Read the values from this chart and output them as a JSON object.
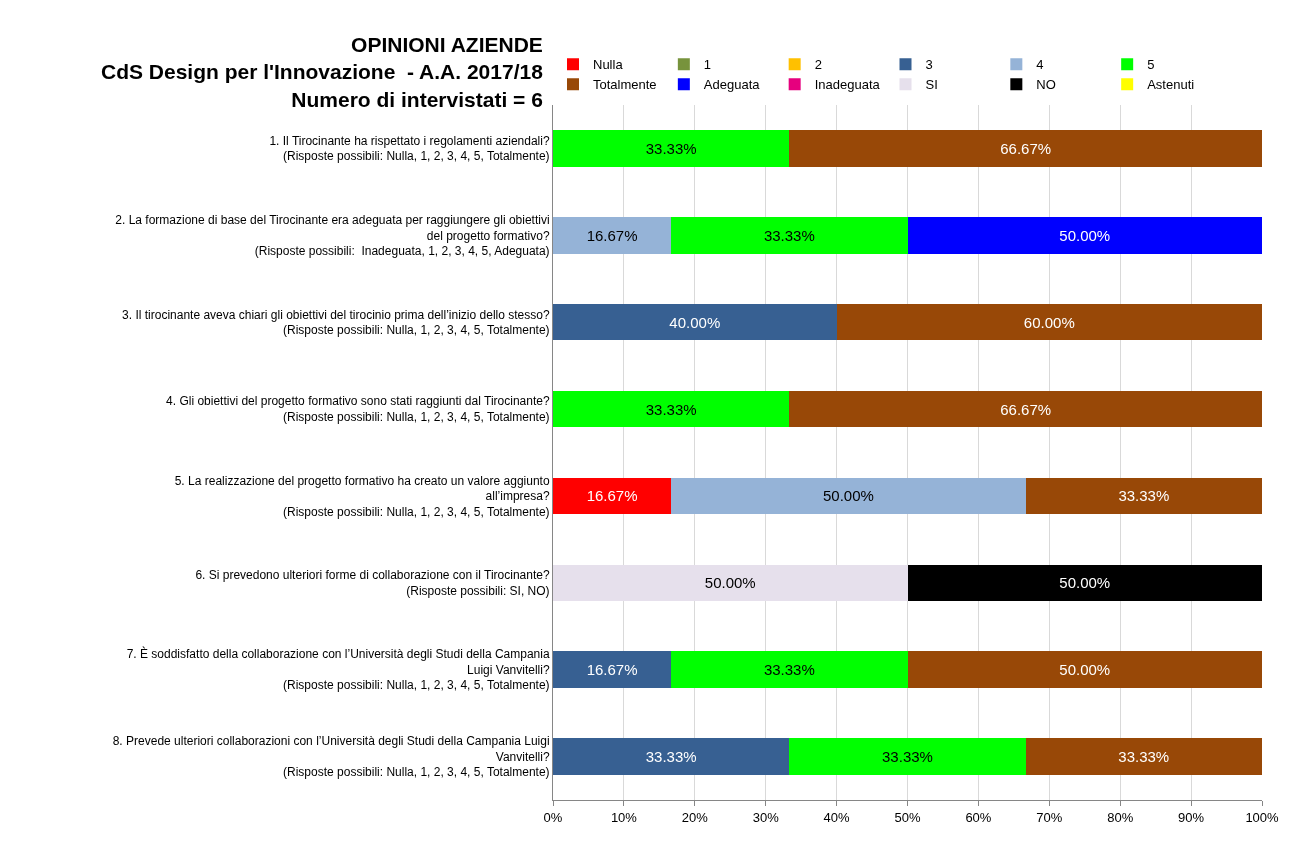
{
  "chart_data": {
    "type": "bar",
    "orientation": "horizontal",
    "stacked": true,
    "title": "OPINIONI AZIENDE\nCdS Design per l'Innovazione  - A.A. 2017/18\nNumero di intervistati = 6",
    "categories": [
      "1. Il Tirocinante ha rispettato i regolamenti aziendali?\n(Risposte possibili: Nulla, 1, 2, 3, 4, 5, Totalmente)",
      "2. La formazione di base del Tirocinante era adeguata per raggiungere gli obiettivi\ndel progetto formativo?\n(Risposte possibili:  Inadeguata, 1, 2, 3, 4, 5, Adeguata)",
      "3. Il tirocinante aveva chiari gli obiettivi del tirocinio prima dell’inizio dello stesso?\n(Risposte possibili: Nulla, 1, 2, 3, 4, 5, Totalmente)",
      "4. Gli obiettivi del progetto formativo sono stati raggiunti dal Tirocinante?\n(Risposte possibili: Nulla, 1, 2, 3, 4, 5, Totalmente)",
      "5. La realizzazione del progetto formativo ha creato un valore aggiunto\nall’impresa?\n(Risposte possibili: Nulla, 1, 2, 3, 4, 5, Totalmente)",
      "6. Si prevedono ulteriori forme di collaborazione con il Tirocinante?\n(Risposte possibili: SI, NO)",
      "7. È soddisfatto della collaborazione con l’Università degli Studi della Campania\nLuigi Vanvitelli?\n(Risposte possibili: Nulla, 1, 2, 3, 4, 5, Totalmente)",
      "8. Prevede ulteriori collaborazioni con l’Università degli Studi della Campania Luigi\nVanvitelli?\n(Risposte possibili: Nulla, 1, 2, 3, 4, 5, Totalmente)"
    ],
    "series": [
      {
        "name": "Nulla",
        "color": "#ff0000",
        "values": [
          null,
          null,
          null,
          null,
          16.67,
          null,
          null,
          null
        ],
        "value_labels": [
          null,
          null,
          null,
          null,
          "16.67%",
          null,
          null,
          null
        ]
      },
      {
        "name": "1",
        "color": "#77933c",
        "values": [
          null,
          null,
          null,
          null,
          null,
          null,
          null,
          null
        ]
      },
      {
        "name": "2",
        "color": "#ffc000",
        "values": [
          null,
          null,
          null,
          null,
          null,
          null,
          null,
          null
        ]
      },
      {
        "name": "3",
        "color": "#376092",
        "values": [
          null,
          null,
          40,
          null,
          null,
          null,
          16.67,
          33.33
        ],
        "value_labels": [
          null,
          null,
          "40.00%",
          null,
          null,
          null,
          "16.67%",
          "33.33%"
        ]
      },
      {
        "name": "4",
        "color": "#95b3d7",
        "values": [
          null,
          16.67,
          null,
          null,
          50,
          null,
          null,
          null
        ],
        "value_labels": [
          null,
          "16.67%",
          null,
          null,
          "50.00%",
          null,
          null,
          null
        ]
      },
      {
        "name": "5",
        "color": "#00ff00",
        "values": [
          33.33,
          33.33,
          null,
          33.33,
          null,
          null,
          33.33,
          33.33
        ],
        "value_labels": [
          "33.33%",
          "33.33%",
          null,
          "33.33%",
          null,
          null,
          "33.33%",
          "33.33%"
        ]
      },
      {
        "name": "Totalmente",
        "color": "#984807",
        "values": [
          66.67,
          null,
          60,
          66.67,
          33.33,
          null,
          50,
          33.33
        ],
        "value_labels": [
          "66.67%",
          null,
          "60.00%",
          "66.67%",
          "33.33%",
          null,
          "50.00%",
          "33.33%"
        ]
      },
      {
        "name": "Adeguata",
        "color": "#0000ff",
        "values": [
          null,
          50,
          null,
          null,
          null,
          null,
          null,
          null
        ],
        "value_labels": [
          null,
          "50.00%",
          null,
          null,
          null,
          null,
          null,
          null
        ]
      },
      {
        "name": "Inadeguata",
        "color": "#e6007e",
        "values": [
          null,
          null,
          null,
          null,
          null,
          null,
          null,
          null
        ]
      },
      {
        "name": "SI",
        "color": "#e6e0ec",
        "values": [
          null,
          null,
          null,
          null,
          null,
          50,
          null,
          null
        ],
        "value_labels": [
          null,
          null,
          null,
          null,
          null,
          "50.00%",
          null,
          null
        ]
      },
      {
        "name": "NO",
        "color": "#000000",
        "values": [
          null,
          null,
          null,
          null,
          null,
          50,
          null,
          null
        ],
        "value_labels": [
          null,
          null,
          null,
          null,
          null,
          "50.00%",
          null,
          null
        ]
      },
      {
        "name": "Astenuti",
        "color": "#ffff00",
        "values": [
          null,
          null,
          null,
          null,
          null,
          null,
          null,
          null
        ]
      }
    ],
    "xlim": [
      0,
      100
    ],
    "xticks": [
      {
        "value": 0,
        "label": "0%"
      },
      {
        "value": 10,
        "label": "10%"
      },
      {
        "value": 20,
        "label": "20%"
      },
      {
        "value": 30,
        "label": "30%"
      },
      {
        "value": 40,
        "label": "40%"
      },
      {
        "value": 50,
        "label": "50%"
      },
      {
        "value": 60,
        "label": "60%"
      },
      {
        "value": 70,
        "label": "70%"
      },
      {
        "value": 80,
        "label": "80%"
      },
      {
        "value": 90,
        "label": "90%"
      },
      {
        "value": 100,
        "label": "100%"
      }
    ],
    "grid": "x",
    "legend": "top"
  }
}
